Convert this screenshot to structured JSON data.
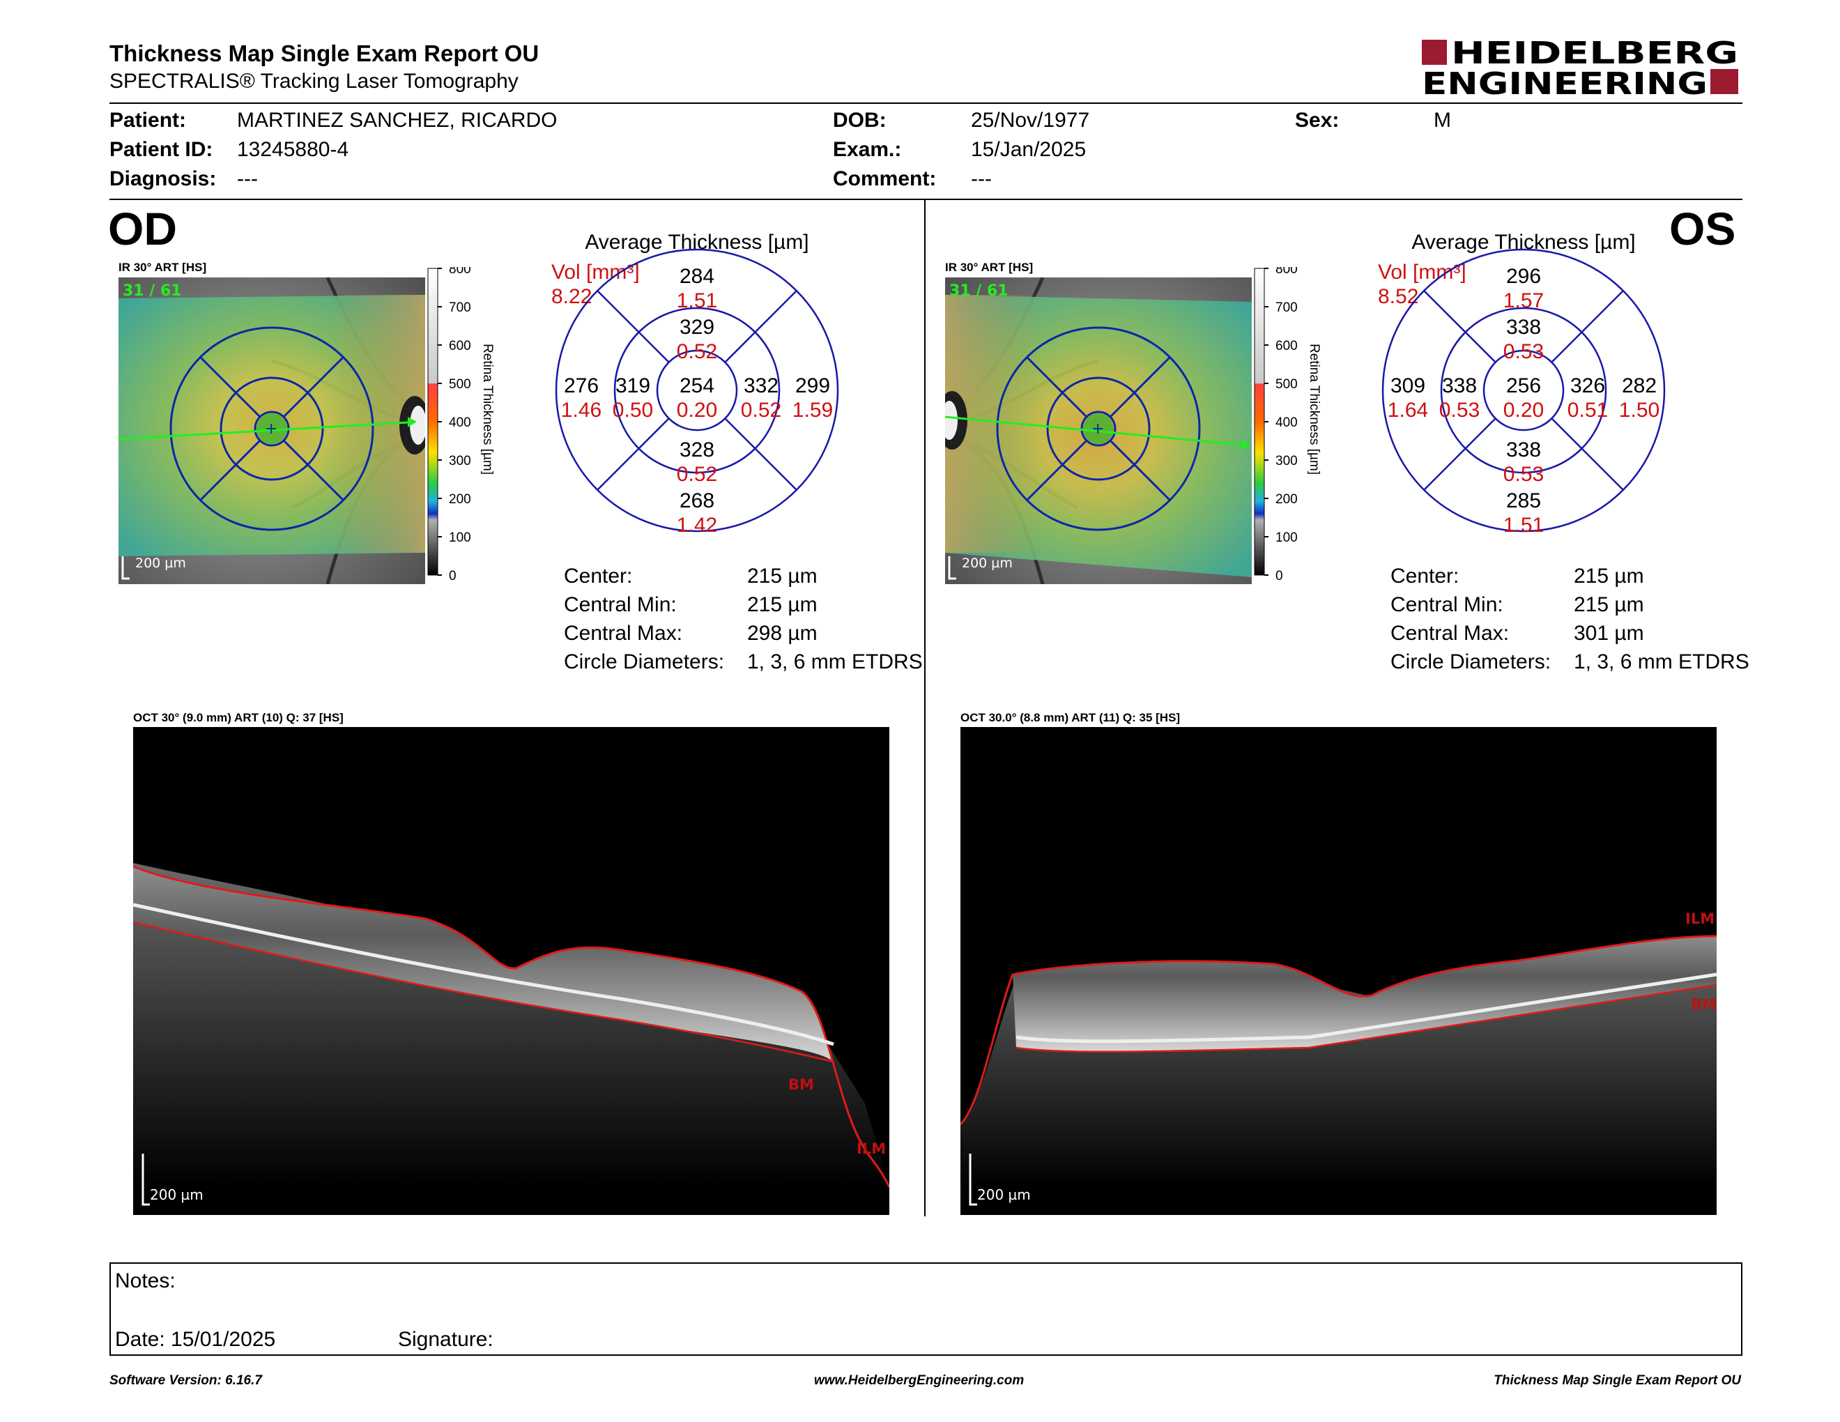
{
  "header": {
    "title": "Thickness Map Single Exam Report OU",
    "subtitle": "SPECTRALIS® Tracking Laser Tomography",
    "logo": {
      "line1": "HEIDELBERG",
      "line2": "ENGINEERING",
      "color": "#9b1b30"
    }
  },
  "patient": {
    "patient_label": "Patient:",
    "patient_value": "MARTINEZ SANCHEZ, RICARDO",
    "id_label": "Patient ID:",
    "id_value": "13245880-4",
    "diagnosis_label": "Diagnosis:",
    "diagnosis_value": "---",
    "dob_label": "DOB:",
    "dob_value": "25/Nov/1977",
    "exam_label": "Exam.:",
    "exam_value": "15/Jan/2025",
    "comment_label": "Comment:",
    "comment_value": "---",
    "sex_label": "Sex:",
    "sex_value": "M"
  },
  "colorbar": {
    "ticks": [
      "800",
      "700",
      "600",
      "500",
      "400",
      "300",
      "200",
      "100",
      "0"
    ],
    "label": "Retina Thickness [µm]"
  },
  "od": {
    "eye": "OD",
    "ir_label": "IR 30° ART [HS]",
    "ir_counter": "31 / 61",
    "ir_scale": "200 µm",
    "avg_title": "Average Thickness [µm]",
    "vol_label": "Vol [mm³]",
    "vol_value": "8.22",
    "grid": {
      "center": {
        "t": "254",
        "v": "0.20"
      },
      "inner_top": {
        "t": "329",
        "v": "0.52"
      },
      "inner_bottom": {
        "t": "328",
        "v": "0.52"
      },
      "inner_left": {
        "t": "319",
        "v": "0.50"
      },
      "inner_right": {
        "t": "332",
        "v": "0.52"
      },
      "outer_top": {
        "t": "284",
        "v": "1.51"
      },
      "outer_bottom": {
        "t": "268",
        "v": "1.42"
      },
      "outer_left": {
        "t": "276",
        "v": "1.46"
      },
      "outer_right": {
        "t": "299",
        "v": "1.59"
      }
    },
    "stats": {
      "center_label": "Center:",
      "center_value": "215 µm",
      "min_label": "Central Min:",
      "min_value": "215 µm",
      "max_label": "Central Max:",
      "max_value": "298 µm",
      "diam_label": "Circle Diameters:",
      "diam_value": "1, 3, 6 mm ETDRS"
    },
    "oct_label": "OCT 30° (9.0 mm) ART (10) Q: 37 [HS]",
    "oct_scale": "200 µm",
    "bm": "BM",
    "ilm": "ILM"
  },
  "os": {
    "eye": "OS",
    "ir_label": "IR 30° ART [HS]",
    "ir_counter": "31 / 61",
    "ir_scale": "200 µm",
    "avg_title": "Average Thickness [µm]",
    "vol_label": "Vol [mm³]",
    "vol_value": "8.52",
    "grid": {
      "center": {
        "t": "256",
        "v": "0.20"
      },
      "inner_top": {
        "t": "338",
        "v": "0.53"
      },
      "inner_bottom": {
        "t": "338",
        "v": "0.53"
      },
      "inner_left": {
        "t": "338",
        "v": "0.53"
      },
      "inner_right": {
        "t": "326",
        "v": "0.51"
      },
      "outer_top": {
        "t": "296",
        "v": "1.57"
      },
      "outer_bottom": {
        "t": "285",
        "v": "1.51"
      },
      "outer_left": {
        "t": "309",
        "v": "1.64"
      },
      "outer_right": {
        "t": "282",
        "v": "1.50"
      }
    },
    "stats": {
      "center_label": "Center:",
      "center_value": "215 µm",
      "min_label": "Central Min:",
      "min_value": "215 µm",
      "max_label": "Central Max:",
      "max_value": "301 µm",
      "diam_label": "Circle Diameters:",
      "diam_value": "1, 3, 6 mm ETDRS"
    },
    "oct_label": "OCT 30.0° (8.8 mm) ART (11) Q: 35 [HS]",
    "oct_scale": "200 µm",
    "bm": "BM",
    "ilm": "ILM"
  },
  "notes": {
    "notes_label": "Notes:",
    "date_label": "Date: 15/01/2025",
    "signature_label": "Signature:"
  },
  "footer": {
    "software": "Software Version: 6.16.7",
    "website": "www.HeidelbergEngineering.com",
    "report": "Thickness Map Single Exam Report OU"
  }
}
